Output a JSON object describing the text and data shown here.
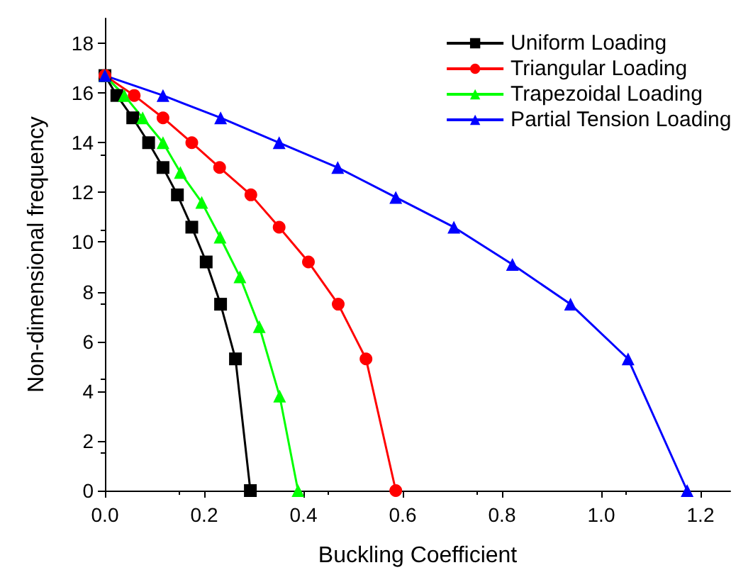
{
  "chart_data": {
    "type": "line",
    "xlabel": "Buckling Coefficient",
    "ylabel": "Non-dimensional frequency",
    "xlim": [
      0,
      1.26
    ],
    "ylim": [
      0,
      19
    ],
    "xticks": [
      {
        "value": 0,
        "label": "0.0"
      },
      0.2,
      0.4,
      0.6,
      0.8,
      {
        "value": 1,
        "label": "1.0"
      },
      1.2
    ],
    "yticks": [
      0,
      2,
      4,
      6,
      8,
      10,
      12,
      14,
      16,
      18
    ],
    "grid": false,
    "legend": "top right",
    "series": [
      {
        "name": "Uniform Loading",
        "color": "#000000",
        "marker": "square",
        "x": [
          0,
          0.024,
          0.056,
          0.088,
          0.117,
          0.146,
          0.175,
          0.204,
          0.233,
          0.263,
          0.293
        ],
        "values": [
          16.7,
          15.9,
          15.0,
          14.0,
          13.0,
          11.9,
          10.6,
          9.2,
          7.5,
          5.3,
          0
        ]
      },
      {
        "name": "Triangular Loading",
        "color": "#ff0000",
        "marker": "circle",
        "x": [
          0,
          0.059,
          0.117,
          0.175,
          0.231,
          0.294,
          0.351,
          0.41,
          0.47,
          0.526,
          0.586
        ],
        "values": [
          16.7,
          15.9,
          15.0,
          14.0,
          13.0,
          11.9,
          10.6,
          9.2,
          7.5,
          5.3,
          0
        ]
      },
      {
        "name": "Trapezoidal Loading",
        "color": "#00ff00",
        "marker": "triangle",
        "x": [
          0,
          0.039,
          0.076,
          0.117,
          0.152,
          0.195,
          0.232,
          0.272,
          0.311,
          0.352,
          0.389
        ],
        "values": [
          16.7,
          15.9,
          15.0,
          14.0,
          12.8,
          11.6,
          10.2,
          8.6,
          6.6,
          3.8,
          0
        ]
      },
      {
        "name": "Partial Tension Loading",
        "color": "#0000ff",
        "marker": "triangle",
        "x": [
          0,
          0.117,
          0.233,
          0.351,
          0.469,
          0.586,
          0.703,
          0.821,
          0.938,
          1.054,
          1.173
        ],
        "values": [
          16.7,
          15.9,
          15.0,
          14.0,
          13.0,
          11.8,
          10.6,
          9.1,
          7.5,
          5.3,
          0
        ]
      }
    ]
  }
}
